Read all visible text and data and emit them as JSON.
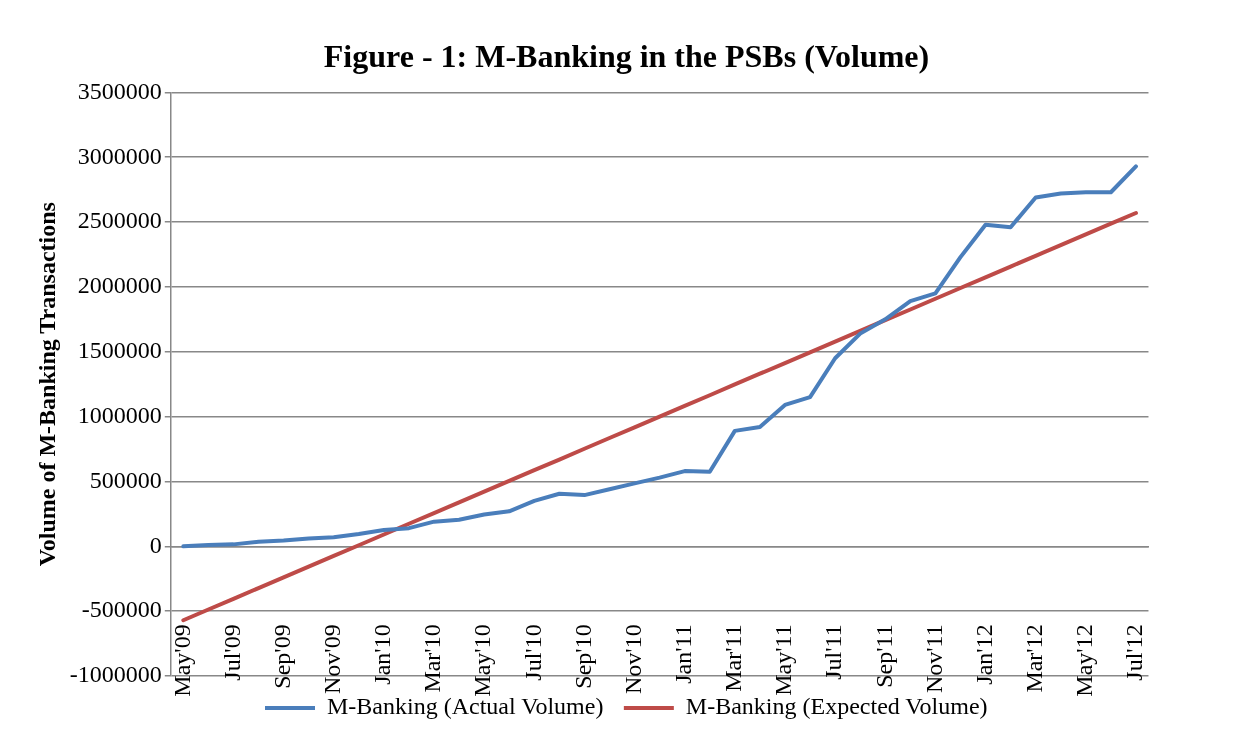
{
  "chart_data": {
    "type": "line",
    "title": "Figure - 1: M-Banking in the PSBs (Volume)",
    "ylabel": "Volume of M-Banking Transactions",
    "categories": [
      "May'09",
      null,
      "Jul'09",
      null,
      "Sep'09",
      null,
      "Nov'09",
      null,
      "Jan'10",
      null,
      "Mar'10",
      null,
      "May'10",
      null,
      "Jul'10",
      null,
      "Sep'10",
      null,
      "Nov'10",
      null,
      "Jan'11",
      null,
      "Mar'11",
      null,
      "May'11",
      null,
      "Jul'11",
      null,
      "Sep'11",
      null,
      "Nov'11",
      null,
      "Jan'12",
      null,
      "Mar'12",
      null,
      "May'12",
      null,
      "Jul'12"
    ],
    "series": [
      {
        "name": "M-Banking (Actual Volume)",
        "color": "#4a7ebb",
        "values": [
          0,
          10000,
          15000,
          35000,
          45000,
          60000,
          70000,
          95000,
          125000,
          140000,
          190000,
          205000,
          245000,
          270000,
          350000,
          405000,
          395000,
          440000,
          485000,
          530000,
          580000,
          575000,
          890000,
          920000,
          1090000,
          1150000,
          1450000,
          1640000,
          1750000,
          1890000,
          1950000,
          2230000,
          2480000,
          2460000,
          2690000,
          2720000,
          2730000,
          2730000,
          2930000
        ]
      },
      {
        "name": "M-Banking (Expected Volume)",
        "color": "#be4b48",
        "values": [
          -570000,
          -487000,
          -405000,
          -322000,
          -239000,
          -157000,
          -74000,
          8000,
          91000,
          174000,
          256000,
          339000,
          422000,
          504000,
          587000,
          669000,
          752000,
          835000,
          917000,
          1000000,
          1083000,
          1165000,
          1248000,
          1331000,
          1413000,
          1496000,
          1578000,
          1661000,
          1744000,
          1826000,
          1909000,
          1992000,
          2074000,
          2157000,
          2240000,
          2322000,
          2405000,
          2488000,
          2570000
        ]
      }
    ],
    "ylim": [
      -1000000,
      3500000
    ],
    "yticks": [
      -1000000,
      -500000,
      0,
      500000,
      1000000,
      1500000,
      2000000,
      2500000,
      3000000,
      3500000
    ],
    "grid": "y",
    "legend": "bottom",
    "marker": "none",
    "line_style": "solid"
  }
}
